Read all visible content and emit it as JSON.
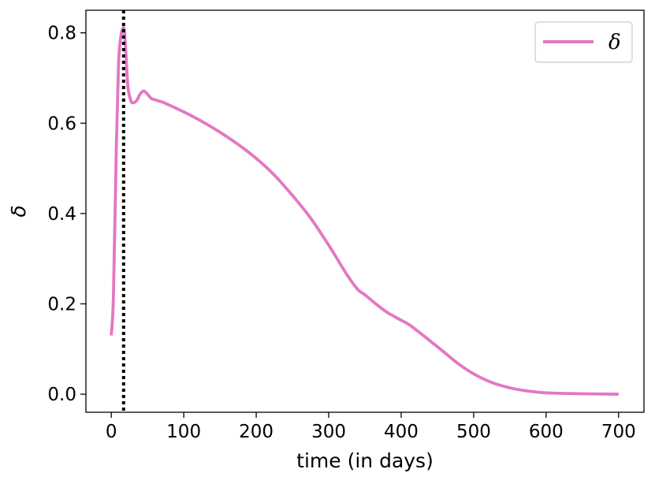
{
  "chart_data": {
    "type": "line",
    "xlabel": "time (in days)",
    "ylabel": "δ",
    "xlim": [
      -35,
      735
    ],
    "ylim": [
      -0.04,
      0.85
    ],
    "xticks": [
      0,
      100,
      200,
      300,
      400,
      500,
      600,
      700
    ],
    "yticks": [
      0.0,
      0.2,
      0.4,
      0.6,
      0.8
    ],
    "xtick_labels": [
      "0",
      "100",
      "200",
      "300",
      "400",
      "500",
      "600",
      "700"
    ],
    "ytick_labels": [
      "0.0",
      "0.2",
      "0.4",
      "0.6",
      "0.8"
    ],
    "grid": false,
    "legend_position": "top-right",
    "vline": {
      "x": 17,
      "style": "dotted",
      "color": "#000000"
    },
    "series": [
      {
        "name": "δ",
        "color": "#e377c2",
        "x": [
          0,
          3,
          7,
          10,
          13,
          16,
          18,
          20,
          23,
          27,
          30,
          35,
          40,
          45,
          50,
          55,
          60,
          70,
          80,
          100,
          125,
          150,
          175,
          200,
          225,
          250,
          275,
          300,
          325,
          340,
          350,
          365,
          380,
          395,
          410,
          425,
          440,
          460,
          480,
          500,
          525,
          550,
          575,
          600,
          650,
          700
        ],
        "y": [
          0.13,
          0.22,
          0.55,
          0.73,
          0.79,
          0.81,
          0.805,
          0.76,
          0.68,
          0.65,
          0.645,
          0.65,
          0.665,
          0.671,
          0.664,
          0.655,
          0.652,
          0.647,
          0.64,
          0.625,
          0.604,
          0.58,
          0.553,
          0.522,
          0.485,
          0.44,
          0.39,
          0.33,
          0.265,
          0.232,
          0.22,
          0.2,
          0.182,
          0.168,
          0.155,
          0.137,
          0.118,
          0.092,
          0.066,
          0.045,
          0.026,
          0.014,
          0.007,
          0.003,
          0.001,
          0.0
        ]
      }
    ]
  }
}
